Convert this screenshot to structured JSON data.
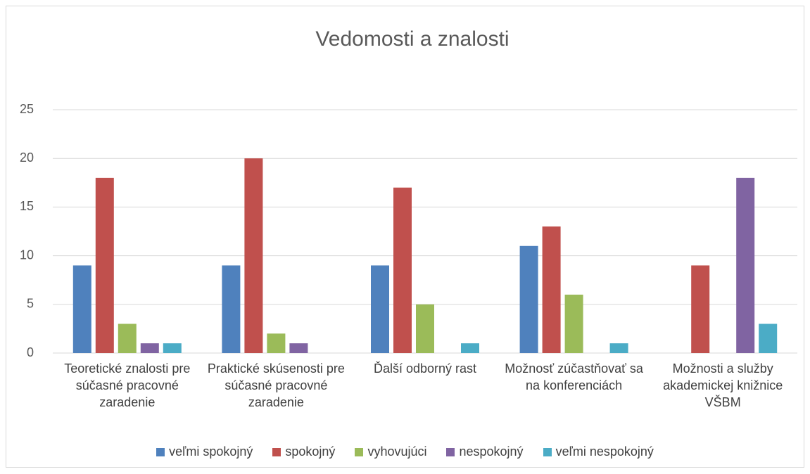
{
  "chart_data": {
    "type": "bar",
    "title": "Vedomosti a znalosti",
    "categories": [
      "Teoretické znalosti pre súčasné pracovné zaradenie",
      "Praktické skúsenosti pre súčasné pracovné zaradenie",
      "Ďalší odborný rast",
      "Možnosť zúčastňovať sa na konferenciách",
      "Možnosti a služby akademickej knižnice VŠBM"
    ],
    "series": [
      {
        "name": "veľmi spokojný",
        "color": "#4f81bd",
        "values": [
          9,
          9,
          9,
          11,
          0
        ]
      },
      {
        "name": "spokojný",
        "color": "#c0504d",
        "values": [
          18,
          20,
          17,
          13,
          9
        ]
      },
      {
        "name": "vyhovujúci",
        "color": "#9bbb59",
        "values": [
          3,
          2,
          5,
          6,
          0
        ]
      },
      {
        "name": "nespokojný",
        "color": "#8064a2",
        "values": [
          1,
          1,
          0,
          0,
          18
        ]
      },
      {
        "name": "veľmi nespokojný",
        "color": "#4bacc6",
        "values": [
          1,
          0,
          1,
          1,
          3
        ]
      }
    ],
    "ylim": [
      0,
      25
    ],
    "yticks": [
      0,
      5,
      10,
      15,
      20,
      25
    ],
    "grid": true,
    "legend": "bottom"
  }
}
